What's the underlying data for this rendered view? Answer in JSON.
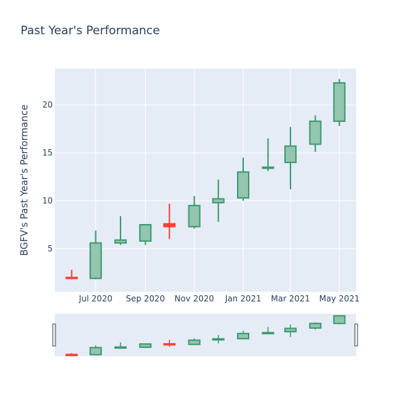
{
  "chart_data": {
    "type": "candlestick",
    "title": "Past Year's Performance",
    "ylabel": "BGFV's Past Year's Performance",
    "xlabel": "",
    "x_ticks": [
      "Jul 2020",
      "Sep 2020",
      "Nov 2020",
      "Jan 2021",
      "Mar 2021",
      "May 2021"
    ],
    "y_ticks": [
      5,
      10,
      15,
      20
    ],
    "ylim": [
      0.5,
      23.8
    ],
    "grid": true,
    "rangeslider": true,
    "colors": {
      "increasing": "#3d9970",
      "increasing_fill": "#94c5ae",
      "decreasing": "#ff4136",
      "plot_bg": "#e5ecf6",
      "grid": "#ffffff",
      "text": "#2a3f5f"
    },
    "candles": [
      {
        "date": "2020-06-01",
        "open": 2.0,
        "high": 2.8,
        "low": 1.8,
        "close": 1.9
      },
      {
        "date": "2020-07-01",
        "open": 1.9,
        "high": 6.9,
        "low": 1.8,
        "close": 5.6
      },
      {
        "date": "2020-08-01",
        "open": 5.6,
        "high": 8.4,
        "low": 5.4,
        "close": 5.9
      },
      {
        "date": "2020-09-01",
        "open": 5.8,
        "high": 7.5,
        "low": 5.4,
        "close": 7.5
      },
      {
        "date": "2020-10-01",
        "open": 7.6,
        "high": 9.7,
        "low": 6.0,
        "close": 7.3
      },
      {
        "date": "2020-11-01",
        "open": 7.3,
        "high": 10.5,
        "low": 7.1,
        "close": 9.5
      },
      {
        "date": "2020-12-01",
        "open": 9.8,
        "high": 12.2,
        "low": 7.8,
        "close": 10.2
      },
      {
        "date": "2021-01-01",
        "open": 10.3,
        "high": 14.5,
        "low": 10.0,
        "close": 13.0
      },
      {
        "date": "2021-02-01",
        "open": 13.4,
        "high": 16.5,
        "low": 13.1,
        "close": 13.5
      },
      {
        "date": "2021-03-01",
        "open": 14.0,
        "high": 17.7,
        "low": 11.2,
        "close": 15.7
      },
      {
        "date": "2021-04-01",
        "open": 15.9,
        "high": 18.9,
        "low": 15.1,
        "close": 18.3
      },
      {
        "date": "2021-05-01",
        "open": 18.3,
        "high": 22.7,
        "low": 17.8,
        "close": 22.3
      }
    ]
  }
}
